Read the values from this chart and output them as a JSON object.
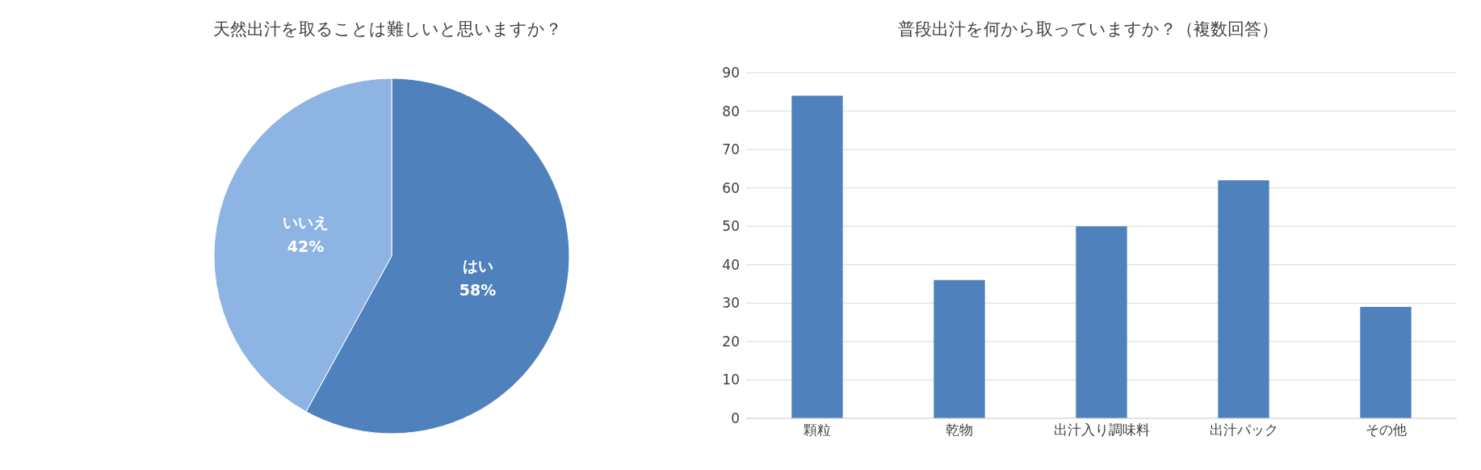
{
  "chart_data": [
    {
      "type": "pie",
      "title": "天然出汁を取ることは難しいと思いますか？",
      "categories": [
        "はい",
        "いいえ"
      ],
      "values": [
        58,
        42
      ],
      "colors": [
        "#4f81bd",
        "#8eb4e3"
      ],
      "value_labels": [
        "58%",
        "42%"
      ]
    },
    {
      "type": "bar",
      "title": "普段出汁を何から取っていますか？（複数回答）",
      "categories": [
        "顆粒",
        "乾物",
        "出汁入り調味料",
        "出汁パック",
        "その他"
      ],
      "values": [
        84,
        36,
        50,
        62,
        29
      ],
      "color": "#4f81bd",
      "ylim": [
        0,
        90
      ],
      "yticks": [
        0,
        10,
        20,
        30,
        40,
        50,
        60,
        70,
        80,
        90
      ],
      "grid": "y"
    }
  ]
}
